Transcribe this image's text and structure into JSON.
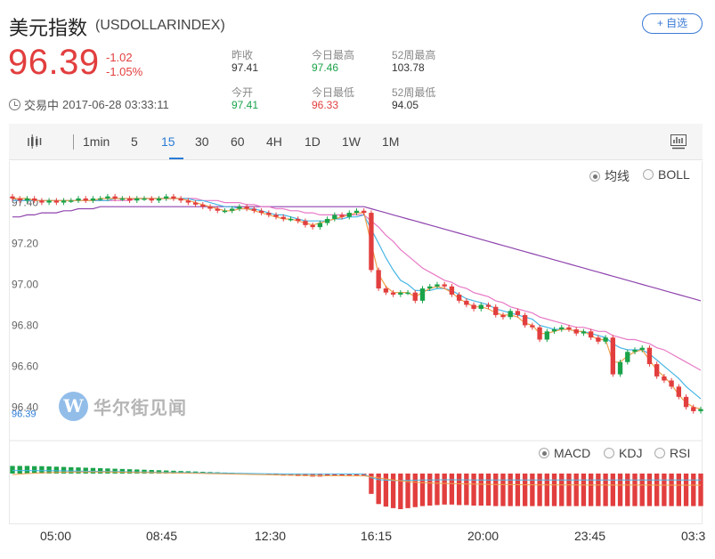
{
  "header": {
    "title": "美元指数",
    "code": "(USDOLLARINDEX)",
    "add_button": "+ 自选"
  },
  "quote": {
    "price": "96.39",
    "change": "-1.02",
    "change_pct": "-1.05%",
    "status": "交易中",
    "timestamp": "2017-06-28 03:33:11"
  },
  "stats": [
    {
      "label": "昨收",
      "value": "97.41"
    },
    {
      "label": "今日最高",
      "value": "97.46"
    },
    {
      "label": "52周最高",
      "value": "103.78"
    },
    {
      "label": "今开",
      "value": "97.41"
    },
    {
      "label": "今日最低",
      "value": "96.33"
    },
    {
      "label": "52周最低",
      "value": "94.05"
    }
  ],
  "toolbar": {
    "icon": "candlestick-icon",
    "intervals": [
      "1min",
      "5",
      "15",
      "30",
      "60",
      "4H",
      "1D",
      "1W",
      "1M"
    ],
    "active": "15",
    "right_icon": "chart-settings-icon"
  },
  "overlay_options": [
    {
      "label": "均线",
      "selected": true
    },
    {
      "label": "BOLL",
      "selected": false
    }
  ],
  "indicator_options": [
    {
      "label": "MACD",
      "selected": true
    },
    {
      "label": "KDJ",
      "selected": false
    },
    {
      "label": "RSI",
      "selected": false
    }
  ],
  "watermark": {
    "mark": "W",
    "text": "华尔街见闻"
  },
  "colors": {
    "up": "#e23e3e",
    "down": "#1aa34a",
    "accent": "#2a7bd6"
  },
  "chart_data": {
    "type": "candlestick",
    "y_ticks": [
      "97.40",
      "97.20",
      "97.00",
      "96.80",
      "96.60",
      "96.40"
    ],
    "ylim": [
      96.31,
      97.52
    ],
    "last_price_label": "96.39",
    "x_ticks": [
      "05:00",
      "08:45",
      "12:30",
      "16:15",
      "20:00",
      "23:45",
      "03:3"
    ],
    "closes": [
      97.42,
      97.41,
      97.42,
      97.41,
      97.4,
      97.41,
      97.4,
      97.41,
      97.41,
      97.42,
      97.41,
      97.42,
      97.42,
      97.43,
      97.42,
      97.42,
      97.41,
      97.42,
      97.42,
      97.41,
      97.42,
      97.43,
      97.42,
      97.41,
      97.4,
      97.39,
      97.38,
      97.37,
      97.36,
      97.36,
      97.37,
      97.38,
      97.37,
      97.36,
      97.35,
      97.34,
      97.33,
      97.32,
      97.32,
      97.31,
      97.29,
      97.28,
      97.3,
      97.32,
      97.34,
      97.33,
      97.35,
      97.36,
      97.35,
      97.07,
      96.98,
      96.96,
      96.95,
      96.96,
      96.96,
      96.92,
      96.98,
      96.99,
      97.0,
      96.99,
      96.95,
      96.92,
      96.9,
      96.88,
      96.9,
      96.89,
      96.85,
      96.84,
      96.87,
      96.85,
      96.8,
      96.79,
      96.73,
      96.77,
      96.78,
      96.79,
      96.78,
      96.76,
      96.77,
      96.74,
      96.72,
      96.74,
      96.56,
      96.62,
      96.67,
      96.68,
      96.69,
      96.61,
      96.55,
      96.53,
      96.5,
      96.45,
      96.4,
      96.38,
      96.39
    ],
    "ma_fast": [
      97.42,
      97.42,
      97.42,
      97.41,
      97.41,
      97.41,
      97.41,
      97.41,
      97.41,
      97.41,
      97.41,
      97.41,
      97.42,
      97.42,
      97.42,
      97.42,
      97.42,
      97.42,
      97.42,
      97.42,
      97.42,
      97.42,
      97.42,
      97.42,
      97.41,
      97.4,
      97.39,
      97.38,
      97.37,
      97.36,
      97.36,
      97.37,
      97.37,
      97.36,
      97.35,
      97.34,
      97.33,
      97.32,
      97.32,
      97.31,
      97.3,
      97.29,
      97.3,
      97.31,
      97.32,
      97.33,
      97.34,
      97.35,
      97.35,
      97.2,
      97.05,
      96.99,
      96.96,
      96.96,
      96.96,
      96.94,
      96.96,
      96.98,
      96.99,
      96.98,
      96.96,
      96.93,
      96.91,
      96.89,
      96.89,
      96.88,
      96.86,
      96.85,
      96.85,
      96.84,
      96.81,
      96.8,
      96.76,
      96.76,
      96.77,
      96.78,
      96.78,
      96.77,
      96.77,
      96.75,
      96.73,
      96.73,
      96.62,
      96.62,
      96.65,
      96.67,
      96.68,
      96.63,
      96.58,
      96.55,
      96.51,
      96.46,
      96.42,
      96.4,
      96.39
    ],
    "ma_mid": [
      97.41,
      97.41,
      97.41,
      97.41,
      97.41,
      97.41,
      97.41,
      97.41,
      97.41,
      97.41,
      97.41,
      97.41,
      97.41,
      97.41,
      97.42,
      97.42,
      97.42,
      97.42,
      97.42,
      97.42,
      97.42,
      97.42,
      97.42,
      97.42,
      97.42,
      97.41,
      97.41,
      97.4,
      97.39,
      97.38,
      97.38,
      97.37,
      97.37,
      97.37,
      97.36,
      97.35,
      97.34,
      97.34,
      97.33,
      97.32,
      97.31,
      97.31,
      97.31,
      97.31,
      97.32,
      97.32,
      97.33,
      97.33,
      97.34,
      97.27,
      97.2,
      97.13,
      97.07,
      97.02,
      97.0,
      96.97,
      96.97,
      96.97,
      96.98,
      96.98,
      96.97,
      96.95,
      96.93,
      96.92,
      96.91,
      96.9,
      96.88,
      96.87,
      96.86,
      96.85,
      96.84,
      96.83,
      96.8,
      96.79,
      96.78,
      96.78,
      96.78,
      96.77,
      96.77,
      96.76,
      96.75,
      96.74,
      96.71,
      96.69,
      96.68,
      96.68,
      96.68,
      96.66,
      96.63,
      96.6,
      96.57,
      96.54,
      96.5,
      96.47,
      96.44
    ],
    "ma_slow": [
      97.41,
      97.41,
      97.41,
      97.41,
      97.41,
      97.41,
      97.41,
      97.41,
      97.41,
      97.41,
      97.41,
      97.41,
      97.41,
      97.41,
      97.41,
      97.41,
      97.41,
      97.42,
      97.42,
      97.42,
      97.42,
      97.42,
      97.42,
      97.42,
      97.42,
      97.42,
      97.41,
      97.41,
      97.41,
      97.4,
      97.4,
      97.4,
      97.39,
      97.39,
      97.38,
      97.38,
      97.37,
      97.37,
      97.36,
      97.36,
      97.35,
      97.35,
      97.34,
      97.34,
      97.34,
      97.34,
      97.34,
      97.34,
      97.34,
      97.31,
      97.28,
      97.24,
      97.21,
      97.17,
      97.14,
      97.11,
      97.08,
      97.06,
      97.04,
      97.02,
      97.01,
      96.99,
      96.98,
      96.96,
      96.95,
      96.94,
      96.92,
      96.91,
      96.89,
      96.88,
      96.87,
      96.86,
      96.84,
      96.83,
      96.82,
      96.81,
      96.8,
      96.79,
      96.79,
      96.78,
      96.77,
      96.77,
      96.75,
      96.74,
      96.73,
      96.73,
      96.72,
      96.71,
      96.69,
      96.68,
      96.66,
      96.64,
      96.62,
      96.6,
      96.58
    ],
    "ma_long": [
      97.33,
      97.33,
      97.34,
      97.34,
      97.35,
      97.35,
      97.35,
      97.36,
      97.36,
      97.37,
      97.37,
      97.37,
      97.38,
      97.38,
      97.38,
      97.38,
      97.38,
      97.38,
      97.38,
      97.38,
      97.38,
      97.38,
      97.38,
      97.38,
      97.38,
      97.38,
      97.38,
      97.38,
      97.38,
      97.38,
      97.38,
      97.38,
      97.38,
      97.38,
      97.38,
      97.38,
      97.38,
      97.38,
      97.38,
      97.38,
      97.38,
      97.38,
      97.38,
      97.38,
      97.38,
      97.38,
      97.38,
      97.38,
      97.38,
      97.37,
      97.36,
      97.35,
      97.34,
      97.33,
      97.32,
      97.31,
      97.3,
      97.29,
      97.28,
      97.27,
      97.26,
      97.25,
      97.24,
      97.23,
      97.22,
      97.21,
      97.2,
      97.19,
      97.18,
      97.17,
      97.16,
      97.15,
      97.14,
      97.13,
      97.12,
      97.11,
      97.1,
      97.09,
      97.08,
      97.07,
      97.06,
      97.05,
      97.04,
      97.03,
      97.02,
      97.01,
      97.0,
      96.99,
      96.98,
      96.97,
      96.96,
      96.95,
      96.94,
      96.93,
      96.92
    ],
    "macd_hist": [
      0.03,
      0.03,
      0.03,
      0.029,
      0.029,
      0.028,
      0.027,
      0.026,
      0.025,
      0.024,
      0.023,
      0.022,
      0.021,
      0.02,
      0.019,
      0.018,
      0.017,
      0.016,
      0.015,
      0.014,
      0.013,
      0.012,
      0.011,
      0.01,
      0.009,
      0.008,
      0.007,
      0.006,
      0.005,
      0.004,
      0.003,
      0.002,
      0.001,
      0.0,
      -0.001,
      -0.002,
      -0.003,
      -0.004,
      -0.004,
      -0.005,
      -0.005,
      -0.006,
      -0.006,
      -0.005,
      -0.005,
      -0.004,
      -0.004,
      -0.004,
      -0.005,
      -0.04,
      -0.06,
      -0.065,
      -0.068,
      -0.07,
      -0.068,
      -0.066,
      -0.064,
      -0.063,
      -0.062,
      -0.061,
      -0.061,
      -0.062,
      -0.062,
      -0.063,
      -0.063,
      -0.063,
      -0.064,
      -0.064,
      -0.064,
      -0.064,
      -0.064,
      -0.064,
      -0.064,
      -0.064,
      -0.064,
      -0.064,
      -0.064,
      -0.064,
      -0.064,
      -0.064,
      -0.064,
      -0.064,
      -0.064,
      -0.064,
      -0.064,
      -0.064,
      -0.064,
      -0.064,
      -0.064,
      -0.064,
      -0.064,
      -0.064,
      -0.064,
      -0.064,
      -0.064
    ]
  }
}
